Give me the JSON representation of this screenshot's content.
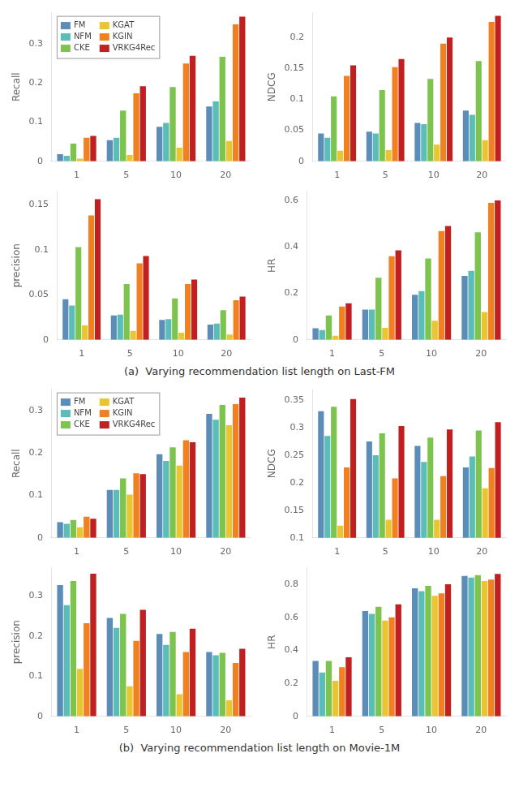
{
  "chart_data": [
    {
      "type": "bar",
      "ylabel": "Recall",
      "categories": [
        "1",
        "5",
        "10",
        "20"
      ],
      "series": [
        {
          "name": "FM",
          "color": "#5B8DB8",
          "values": [
            0.018,
            0.054,
            0.088,
            0.14
          ]
        },
        {
          "name": "NFM",
          "color": "#5BBCB8",
          "values": [
            0.014,
            0.06,
            0.098,
            0.153
          ]
        },
        {
          "name": "CKE",
          "color": "#7DC44E",
          "values": [
            0.045,
            0.13,
            0.19,
            0.267
          ]
        },
        {
          "name": "KGAT",
          "color": "#E8C531",
          "values": [
            0.007,
            0.016,
            0.035,
            0.052
          ]
        },
        {
          "name": "KGIN",
          "color": "#F08020",
          "values": [
            0.06,
            0.174,
            0.25,
            0.35
          ]
        },
        {
          "name": "VRKG4Rec",
          "color": "#C02020",
          "values": [
            0.065,
            0.192,
            0.27,
            0.37
          ]
        }
      ],
      "ylim": [
        0.0,
        0.38
      ],
      "yticks": [
        0,
        0.1,
        0.2,
        0.3
      ],
      "grid": false,
      "legend": "upper left"
    },
    {
      "type": "bar",
      "ylabel": "NDCG",
      "categories": [
        "1",
        "5",
        "10",
        "20"
      ],
      "series": [
        {
          "name": "FM",
          "color": "#5B8DB8",
          "values": [
            0.045,
            0.048,
            0.062,
            0.082
          ]
        },
        {
          "name": "NFM",
          "color": "#5BBCB8",
          "values": [
            0.038,
            0.045,
            0.06,
            0.075
          ]
        },
        {
          "name": "CKE",
          "color": "#7DC44E",
          "values": [
            0.105,
            0.115,
            0.133,
            0.162
          ]
        },
        {
          "name": "KGAT",
          "color": "#E8C531",
          "values": [
            0.017,
            0.018,
            0.027,
            0.034
          ]
        },
        {
          "name": "KGIN",
          "color": "#F08020",
          "values": [
            0.138,
            0.152,
            0.19,
            0.225
          ]
        },
        {
          "name": "VRKG4Rec",
          "color": "#C02020",
          "values": [
            0.155,
            0.165,
            0.2,
            0.235
          ]
        }
      ],
      "ylim": [
        0.0,
        0.24
      ],
      "yticks": [
        0,
        0.05,
        0.1,
        0.15,
        0.2
      ],
      "grid": false
    },
    {
      "type": "bar",
      "ylabel": "precision",
      "categories": [
        "1",
        "5",
        "10",
        "20"
      ],
      "series": [
        {
          "name": "FM",
          "color": "#5B8DB8",
          "values": [
            0.045,
            0.027,
            0.022,
            0.017
          ]
        },
        {
          "name": "NFM",
          "color": "#5BBCB8",
          "values": [
            0.038,
            0.028,
            0.023,
            0.018
          ]
        },
        {
          "name": "CKE",
          "color": "#7DC44E",
          "values": [
            0.103,
            0.062,
            0.046,
            0.033
          ]
        },
        {
          "name": "KGAT",
          "color": "#E8C531",
          "values": [
            0.016,
            0.01,
            0.008,
            0.006
          ]
        },
        {
          "name": "KGIN",
          "color": "#F08020",
          "values": [
            0.138,
            0.085,
            0.062,
            0.044
          ]
        },
        {
          "name": "VRKG4Rec",
          "color": "#C02020",
          "values": [
            0.156,
            0.093,
            0.067,
            0.048
          ]
        }
      ],
      "ylim": [
        0.0,
        0.165
      ],
      "yticks": [
        0,
        0.05,
        0.1,
        0.15
      ],
      "grid": false
    },
    {
      "type": "bar",
      "ylabel": "HR",
      "categories": [
        "1",
        "5",
        "10",
        "20"
      ],
      "series": [
        {
          "name": "FM",
          "color": "#5B8DB8",
          "values": [
            0.05,
            0.13,
            0.194,
            0.275
          ]
        },
        {
          "name": "NFM",
          "color": "#5BBCB8",
          "values": [
            0.042,
            0.13,
            0.21,
            0.297
          ]
        },
        {
          "name": "CKE",
          "color": "#7DC44E",
          "values": [
            0.105,
            0.267,
            0.35,
            0.463
          ]
        },
        {
          "name": "KGAT",
          "color": "#E8C531",
          "values": [
            0.018,
            0.052,
            0.082,
            0.12
          ]
        },
        {
          "name": "KGIN",
          "color": "#F08020",
          "values": [
            0.143,
            0.36,
            0.468,
            0.59
          ]
        },
        {
          "name": "VRKG4Rec",
          "color": "#C02020",
          "values": [
            0.157,
            0.385,
            0.49,
            0.6
          ]
        }
      ],
      "ylim": [
        0.0,
        0.64
      ],
      "yticks": [
        0,
        0.2,
        0.4,
        0.6
      ],
      "grid": false,
      "annotations": [
        "(a)  Varying recommendation list length on Last-FM"
      ]
    },
    {
      "type": "bar",
      "ylabel": "Recall",
      "categories": [
        "1",
        "5",
        "10",
        "20"
      ],
      "series": [
        {
          "name": "FM",
          "color": "#5B8DB8",
          "values": [
            0.037,
            0.113,
            0.197,
            0.292
          ]
        },
        {
          "name": "NFM",
          "color": "#5BBCB8",
          "values": [
            0.033,
            0.113,
            0.181,
            0.278
          ]
        },
        {
          "name": "CKE",
          "color": "#7DC44E",
          "values": [
            0.042,
            0.14,
            0.213,
            0.313
          ]
        },
        {
          "name": "KGAT",
          "color": "#E8C531",
          "values": [
            0.025,
            0.102,
            0.17,
            0.265
          ]
        },
        {
          "name": "KGIN",
          "color": "#F08020",
          "values": [
            0.05,
            0.152,
            0.23,
            0.315
          ]
        },
        {
          "name": "VRKG4Rec",
          "color": "#C02020",
          "values": [
            0.045,
            0.15,
            0.225,
            0.33
          ]
        }
      ],
      "ylim": [
        0.0,
        0.35
      ],
      "yticks": [
        0,
        0.1,
        0.2,
        0.3
      ],
      "grid": false,
      "legend": "upper left"
    },
    {
      "type": "bar",
      "ylabel": "NDCG",
      "categories": [
        "1",
        "5",
        "10",
        "20"
      ],
      "series": [
        {
          "name": "FM",
          "color": "#5B8DB8",
          "values": [
            0.33,
            0.275,
            0.267,
            0.228
          ]
        },
        {
          "name": "NFM",
          "color": "#5BBCB8",
          "values": [
            0.285,
            0.25,
            0.238,
            0.248
          ]
        },
        {
          "name": "CKE",
          "color": "#7DC44E",
          "values": [
            0.338,
            0.29,
            0.282,
            0.295
          ]
        },
        {
          "name": "KGAT",
          "color": "#E8C531",
          "values": [
            0.122,
            0.133,
            0.133,
            0.19
          ]
        },
        {
          "name": "KGIN",
          "color": "#F08020",
          "values": [
            0.228,
            0.208,
            0.212,
            0.227
          ]
        },
        {
          "name": "VRKG4Rec",
          "color": "#C02020",
          "values": [
            0.352,
            0.303,
            0.297,
            0.31
          ]
        }
      ],
      "ylim": [
        0.1,
        0.37
      ],
      "yticks": [
        0.1,
        0.15,
        0.2,
        0.25,
        0.3,
        0.35
      ],
      "grid": false
    },
    {
      "type": "bar",
      "ylabel": "precision",
      "categories": [
        "1",
        "5",
        "10",
        "20"
      ],
      "series": [
        {
          "name": "FM",
          "color": "#5B8DB8",
          "values": [
            0.327,
            0.245,
            0.205,
            0.16
          ]
        },
        {
          "name": "NFM",
          "color": "#5BBCB8",
          "values": [
            0.277,
            0.22,
            0.178,
            0.152
          ]
        },
        {
          "name": "CKE",
          "color": "#7DC44E",
          "values": [
            0.337,
            0.255,
            0.21,
            0.158
          ]
        },
        {
          "name": "KGAT",
          "color": "#E8C531",
          "values": [
            0.118,
            0.075,
            0.055,
            0.04
          ]
        },
        {
          "name": "KGIN",
          "color": "#F08020",
          "values": [
            0.232,
            0.188,
            0.16,
            0.133
          ]
        },
        {
          "name": "VRKG4Rec",
          "color": "#C02020",
          "values": [
            0.355,
            0.265,
            0.218,
            0.168
          ]
        }
      ],
      "ylim": [
        0.0,
        0.37
      ],
      "yticks": [
        0,
        0.1,
        0.2,
        0.3
      ],
      "grid": false
    },
    {
      "type": "bar",
      "ylabel": "HR",
      "categories": [
        "1",
        "5",
        "10",
        "20"
      ],
      "series": [
        {
          "name": "FM",
          "color": "#5B8DB8",
          "values": [
            0.335,
            0.638,
            0.775,
            0.85
          ]
        },
        {
          "name": "NFM",
          "color": "#5BBCB8",
          "values": [
            0.265,
            0.62,
            0.758,
            0.84
          ]
        },
        {
          "name": "CKE",
          "color": "#7DC44E",
          "values": [
            0.335,
            0.663,
            0.79,
            0.855
          ]
        },
        {
          "name": "KGAT",
          "color": "#E8C531",
          "values": [
            0.215,
            0.58,
            0.73,
            0.82
          ]
        },
        {
          "name": "KGIN",
          "color": "#F08020",
          "values": [
            0.298,
            0.6,
            0.745,
            0.828
          ]
        },
        {
          "name": "VRKG4Rec",
          "color": "#C02020",
          "values": [
            0.358,
            0.678,
            0.8,
            0.862
          ]
        }
      ],
      "ylim": [
        0.0,
        0.9
      ],
      "yticks": [
        0,
        0.2,
        0.4,
        0.6,
        0.8
      ],
      "grid": false,
      "annotations": [
        "(b)  Varying recommendation list length on Movie-1M"
      ]
    }
  ]
}
